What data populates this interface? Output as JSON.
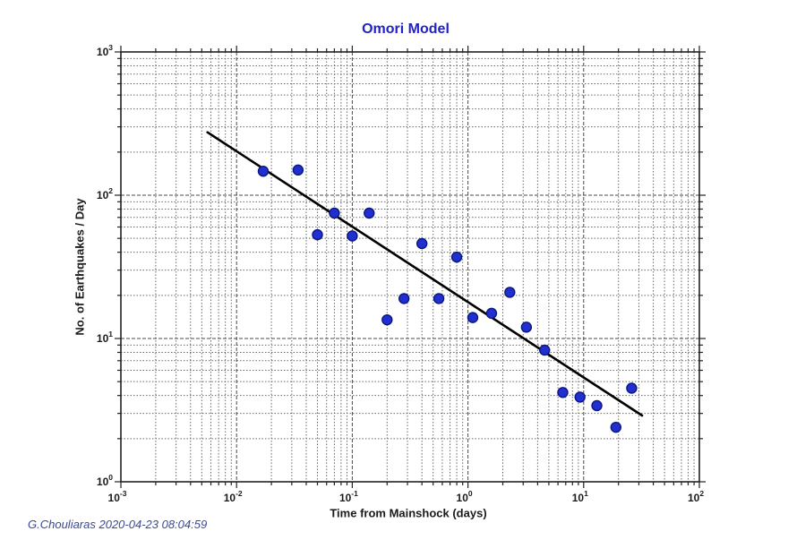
{
  "figure": {
    "background": "#ffffff"
  },
  "credit": {
    "text": "G.Chouliaras 2020-04-23 08:04:59",
    "color": "#3b4a96"
  },
  "chart_data": {
    "type": "scatter",
    "title": "Omori Model",
    "xlabel": "Time from Mainshock (days)",
    "ylabel": "No. of Earthquakes / Day",
    "x_scale": "log",
    "y_scale": "log",
    "xlim": [
      0.001,
      100
    ],
    "ylim": [
      1,
      1000
    ],
    "x_tick_base": "10",
    "x_tick_exponents": [
      "-3",
      "-2",
      "-1",
      "0",
      "1",
      "2"
    ],
    "y_tick_base": "10",
    "y_tick_exponents": [
      "0",
      "1",
      "2",
      "3"
    ],
    "grid": "major+minor, dotted, both axes",
    "legend": "none",
    "points": [
      [
        0.017,
        147
      ],
      [
        0.034,
        150
      ],
      [
        0.05,
        53
      ],
      [
        0.07,
        75
      ],
      [
        0.1,
        52
      ],
      [
        0.14,
        75
      ],
      [
        0.2,
        13.5
      ],
      [
        0.28,
        19
      ],
      [
        0.4,
        46
      ],
      [
        0.56,
        19
      ],
      [
        0.8,
        37
      ],
      [
        1.1,
        14
      ],
      [
        1.6,
        15
      ],
      [
        2.3,
        21
      ],
      [
        3.2,
        12
      ],
      [
        4.6,
        8.3
      ],
      [
        6.6,
        4.2
      ],
      [
        9.3,
        3.9
      ],
      [
        13,
        3.4
      ],
      [
        19,
        2.4
      ],
      [
        26,
        4.5
      ]
    ],
    "fit_line": {
      "x1": 0.0056,
      "y1": 275,
      "x2": 32,
      "y2": 2.9
    },
    "colors": {
      "title": "#2222c4",
      "marker_fill": "#2030d0",
      "marker_edge": "#0b1680",
      "fit_line": "#000000",
      "grid_major": "#4a4a4a",
      "grid_minor": "#6a6a6a",
      "frame": "#222222",
      "axis_text": "#1a1a1a"
    },
    "marker_radius": 5.5
  }
}
